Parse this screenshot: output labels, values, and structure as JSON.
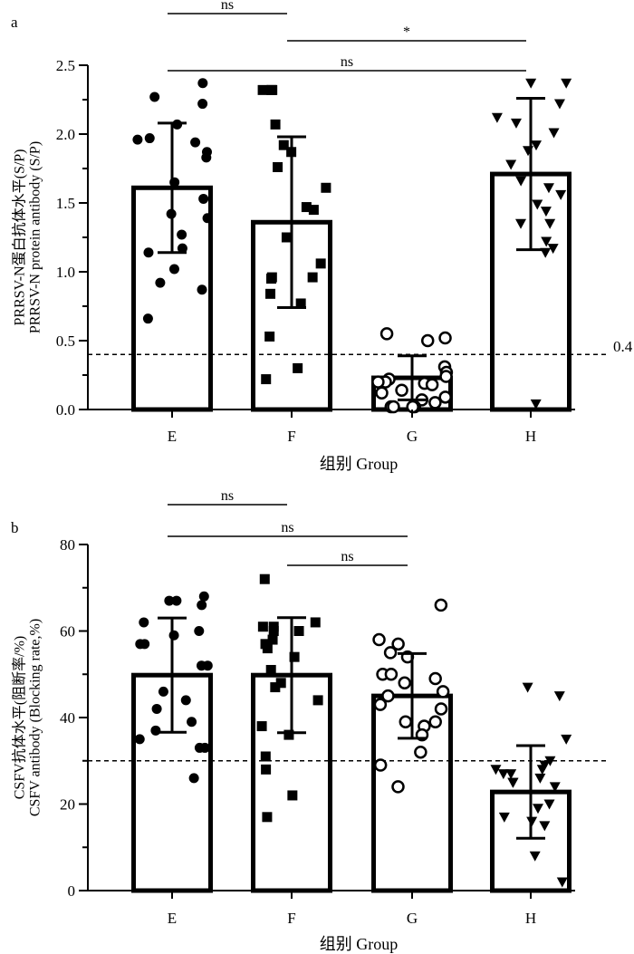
{
  "chart_data": [
    {
      "type": "bar",
      "panel_label": "a",
      "categories": [
        "E",
        "F",
        "G",
        "H"
      ],
      "values": [
        1.61,
        1.36,
        0.23,
        1.71
      ],
      "sd": [
        0.47,
        0.62,
        0.16,
        0.55
      ],
      "ylim": [
        0,
        2.5
      ],
      "yticks": [
        "0.0",
        "0.5",
        "1.0",
        "1.5",
        "2.0",
        "2.5"
      ],
      "ylabel_line1": "PRRSV-N蛋白抗体水平(S/P)",
      "ylabel_line2": "PRRSV-N protein antibody (S/P)",
      "xlabel": "组别 Group",
      "threshold": 0.4,
      "threshold_label": "0.4",
      "marker_shapes": [
        "circle",
        "square",
        "open-circle",
        "triangle-down"
      ],
      "points": [
        [
          2.37,
          2.27,
          2.22,
          2.07,
          1.97,
          1.96,
          1.94,
          1.87,
          1.83,
          1.65,
          1.53,
          1.42,
          1.39,
          1.27,
          1.17,
          1.14,
          1.02,
          0.92,
          0.87,
          0.66
        ],
        [
          2.32,
          2.32,
          2.32,
          2.07,
          1.92,
          1.87,
          1.76,
          1.61,
          1.47,
          1.45,
          1.25,
          1.06,
          0.96,
          0.96,
          0.95,
          0.84,
          0.77,
          0.53,
          0.3,
          0.22
        ],
        [
          0.55,
          0.52,
          0.5,
          0.31,
          0.27,
          0.24,
          0.22,
          0.2,
          0.2,
          0.19,
          0.18,
          0.14,
          0.12,
          0.09,
          0.07,
          0.05,
          0.02,
          0.02,
          0.02,
          0.02
        ],
        [
          2.37,
          2.37,
          2.22,
          2.12,
          2.08,
          2.01,
          1.92,
          1.88,
          1.78,
          1.66,
          1.61,
          1.56,
          1.49,
          1.44,
          1.35,
          1.35,
          1.22,
          1.17,
          1.14,
          0.04
        ]
      ],
      "significance": [
        {
          "groups": [
            "E",
            "F"
          ],
          "label": "ns"
        },
        {
          "groups": [
            "F",
            "H"
          ],
          "label": "*"
        },
        {
          "groups": [
            "E",
            "H"
          ],
          "label": "ns"
        }
      ]
    },
    {
      "type": "bar",
      "panel_label": "b",
      "categories": [
        "E",
        "F",
        "G",
        "H"
      ],
      "values": [
        49.8,
        49.8,
        45.0,
        22.8
      ],
      "sd": [
        13.2,
        13.3,
        9.8,
        10.7
      ],
      "ylim": [
        0,
        80
      ],
      "yticks": [
        "0",
        "20",
        "40",
        "60",
        "80"
      ],
      "ylabel_line1": "CSFV抗体水平(阻断率/%)",
      "ylabel_line2": "CSFV antibody (Blocking rate,%)",
      "xlabel": "组别 Group",
      "threshold": 30,
      "threshold_label": "",
      "marker_shapes": [
        "circle",
        "square",
        "open-circle",
        "triangle-down"
      ],
      "points": [
        [
          68,
          67,
          67,
          66,
          62,
          60,
          59,
          57,
          57,
          52,
          52,
          46,
          44,
          42,
          39,
          37,
          35,
          33,
          33,
          26
        ],
        [
          72,
          62,
          61,
          61,
          60,
          60,
          58,
          57,
          56,
          54,
          51,
          48,
          47,
          44,
          38,
          36,
          31,
          28,
          22,
          17
        ],
        [
          66,
          58,
          57,
          55,
          54,
          50,
          50,
          49,
          48,
          46,
          45,
          43,
          42,
          39,
          39,
          38,
          36,
          32,
          29,
          24
        ],
        [
          47,
          45,
          35,
          30,
          29,
          28,
          28,
          27,
          27,
          26,
          25,
          25,
          24,
          20,
          19,
          17,
          16,
          15,
          8,
          2
        ]
      ],
      "significance": [
        {
          "groups": [
            "E",
            "F"
          ],
          "label": "ns"
        },
        {
          "groups": [
            "E",
            "G"
          ],
          "label": "ns"
        },
        {
          "groups": [
            "F",
            "G"
          ],
          "label": "ns"
        }
      ]
    }
  ]
}
